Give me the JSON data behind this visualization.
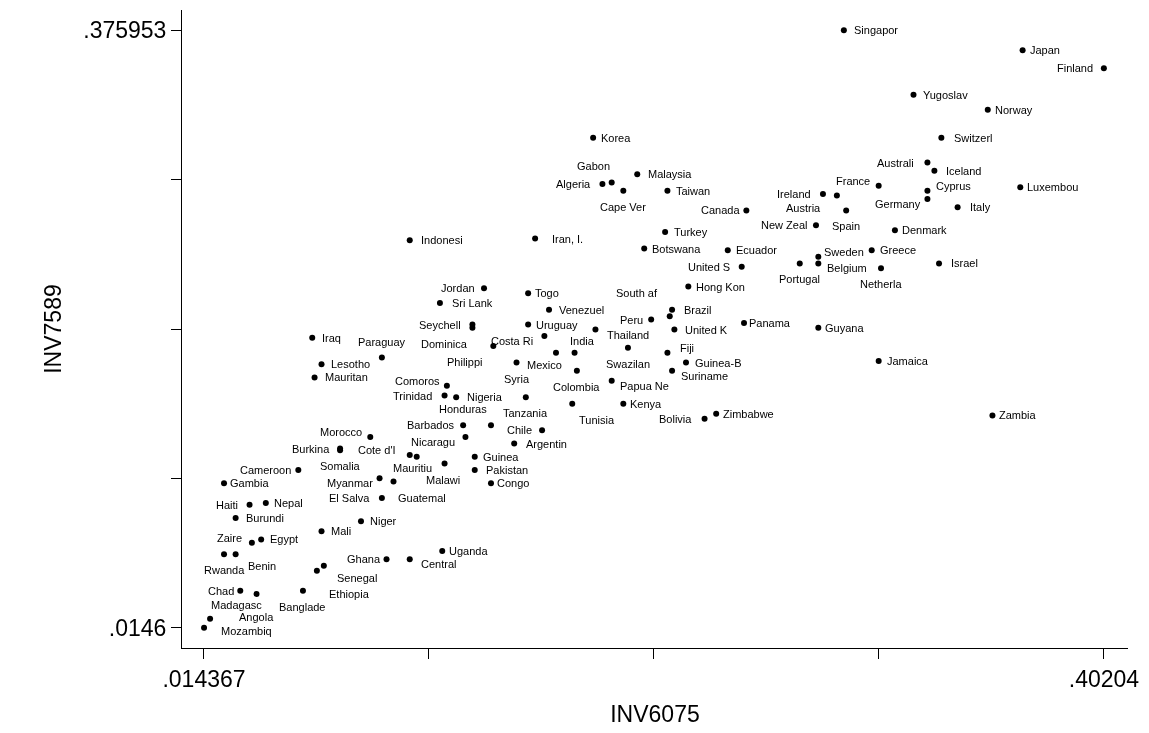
{
  "chart_data": {
    "type": "scatter",
    "xlabel": "INV6075",
    "ylabel": "INV7589",
    "marker": "circle",
    "xlim": [
      0.0049,
      0.4124
    ],
    "ylim": [
      0.0023,
      0.3883
    ],
    "xticks": [
      {
        "value": 0.014367,
        "label": ".014367"
      },
      {
        "value": 0.111285,
        "label": null
      },
      {
        "value": 0.208204,
        "label": null
      },
      {
        "value": 0.305122,
        "label": null
      },
      {
        "value": 0.40204,
        "label": ".40204"
      }
    ],
    "yticks": [
      {
        "value": 0.0146,
        "label": ".0146"
      },
      {
        "value": 0.10494,
        "label": null
      },
      {
        "value": 0.19528,
        "label": null
      },
      {
        "value": 0.28561,
        "label": null
      },
      {
        "value": 0.375953,
        "label": ".375953"
      }
    ],
    "series": [
      {
        "color": "#000000",
        "value_labels": [
          "Singapor",
          "Japan",
          "Finland",
          "Yugoslav",
          "Norway",
          "Korea",
          "Switzerl",
          "Australi",
          "Iceland",
          "Malaysia",
          "Algeria",
          "Gabon",
          "Cape Ver",
          "Taiwan",
          "France",
          "Ireland",
          "Austria",
          "Cyprus",
          "Luxembou",
          "Germany",
          "Italy",
          "Canada",
          "Spain",
          "New Zeal",
          "Denmark",
          "Turkey",
          "Indonesi",
          "Iran, I.",
          "Botswana",
          "Ecuador",
          "Greece",
          "Sweden",
          "United S",
          "Portugal",
          "Belgium",
          "Netherla",
          "Israel",
          "Hong Kon",
          "Jordan",
          "Togo",
          "Sri Lank",
          "Venezuel",
          "Brazil",
          "South af",
          "Peru",
          "Seychell",
          "Dominica",
          "Uruguay",
          "Thailand",
          "United K",
          "Panama",
          "Guyana",
          "Costa Ri",
          "Iraq",
          "Philippi",
          "India",
          "Mexico",
          "Swazilan",
          "Fiji",
          "Paraguay",
          "Lesotho",
          "Syria",
          "Guinea-B",
          "Suriname",
          "Colombia",
          "Jamaica",
          "Papua Ne",
          "Mauritan",
          "Comoros",
          "Trinidad",
          "Nigeria",
          "Tanzania",
          "Tunisia",
          "Kenya",
          "Zimbabwe",
          "Bolivia",
          "Zambia",
          "Barbados",
          "Honduras",
          "Chile",
          "Morocco",
          "Nicaragu",
          "Argentin",
          "Burkina",
          "Somalia",
          "Cote d'I",
          "Malawi",
          "Guinea",
          "Mauritiu",
          "Pakistan",
          "Cameroon",
          "Myanmar",
          "Guatemal",
          "Congo",
          "Gambia",
          "El Salva",
          "Haiti",
          "Nepal",
          "Burundi",
          "Niger",
          "Mali",
          "Zaire",
          "Egypt",
          "Rwanda",
          "Benin",
          "Uganda",
          "Ghana",
          "Central",
          "Senegal",
          "Ethiopia",
          "Chad",
          "Banglade",
          "Angola",
          "Mozambiq",
          "Madagasc"
        ],
        "x": [
          0.29,
          0.367,
          0.402,
          0.32,
          0.352,
          0.182,
          0.332,
          0.326,
          0.329,
          0.201,
          0.186,
          0.19,
          0.195,
          0.214,
          0.305,
          0.281,
          0.287,
          0.326,
          0.366,
          0.326,
          0.339,
          0.248,
          0.291,
          0.278,
          0.312,
          0.213,
          0.103,
          0.157,
          0.204,
          0.24,
          0.302,
          0.279,
          0.246,
          0.271,
          0.279,
          0.306,
          0.331,
          0.223,
          0.135,
          0.154,
          0.116,
          0.163,
          0.216,
          0.215,
          0.207,
          0.13,
          0.13,
          0.154,
          0.183,
          0.217,
          0.247,
          0.279,
          0.161,
          0.061,
          0.139,
          0.166,
          0.174,
          0.197,
          0.214,
          0.091,
          0.065,
          0.149,
          0.222,
          0.216,
          0.175,
          0.305,
          0.19,
          0.062,
          0.119,
          0.118,
          0.123,
          0.153,
          0.173,
          0.195,
          0.235,
          0.23,
          0.354,
          0.126,
          0.138,
          0.16,
          0.086,
          0.127,
          0.148,
          0.073,
          0.073,
          0.103,
          0.106,
          0.131,
          0.118,
          0.131,
          0.055,
          0.09,
          0.096,
          0.138,
          0.023,
          0.091,
          0.034,
          0.041,
          0.028,
          0.082,
          0.065,
          0.035,
          0.039,
          0.023,
          0.028,
          0.117,
          0.093,
          0.103,
          0.066,
          0.063,
          0.03,
          0.057,
          0.037,
          0.017,
          0.0144
        ],
        "values": [
          0.376,
          0.364,
          0.353,
          0.337,
          0.328,
          0.311,
          0.311,
          0.296,
          0.291,
          0.289,
          0.283,
          0.284,
          0.279,
          0.279,
          0.282,
          0.277,
          0.276,
          0.279,
          0.281,
          0.274,
          0.269,
          0.267,
          0.267,
          0.258,
          0.255,
          0.254,
          0.249,
          0.25,
          0.244,
          0.243,
          0.243,
          0.239,
          0.233,
          0.235,
          0.235,
          0.232,
          0.235,
          0.221,
          0.22,
          0.217,
          0.211,
          0.207,
          0.207,
          0.203,
          0.201,
          0.198,
          0.196,
          0.198,
          0.195,
          0.195,
          0.199,
          0.196,
          0.191,
          0.19,
          0.185,
          0.181,
          0.181,
          0.184,
          0.181,
          0.178,
          0.174,
          0.175,
          0.175,
          0.17,
          0.17,
          0.176,
          0.164,
          0.166,
          0.161,
          0.155,
          0.154,
          0.154,
          0.15,
          0.15,
          0.144,
          0.141,
          0.143,
          0.137,
          0.137,
          0.134,
          0.13,
          0.13,
          0.126,
          0.123,
          0.122,
          0.119,
          0.118,
          0.118,
          0.114,
          0.11,
          0.11,
          0.105,
          0.103,
          0.102,
          0.102,
          0.093,
          0.089,
          0.09,
          0.081,
          0.079,
          0.073,
          0.066,
          0.068,
          0.059,
          0.059,
          0.061,
          0.056,
          0.056,
          0.052,
          0.049,
          0.037,
          0.037,
          0.035,
          0.02,
          0.0146
        ]
      }
    ]
  }
}
